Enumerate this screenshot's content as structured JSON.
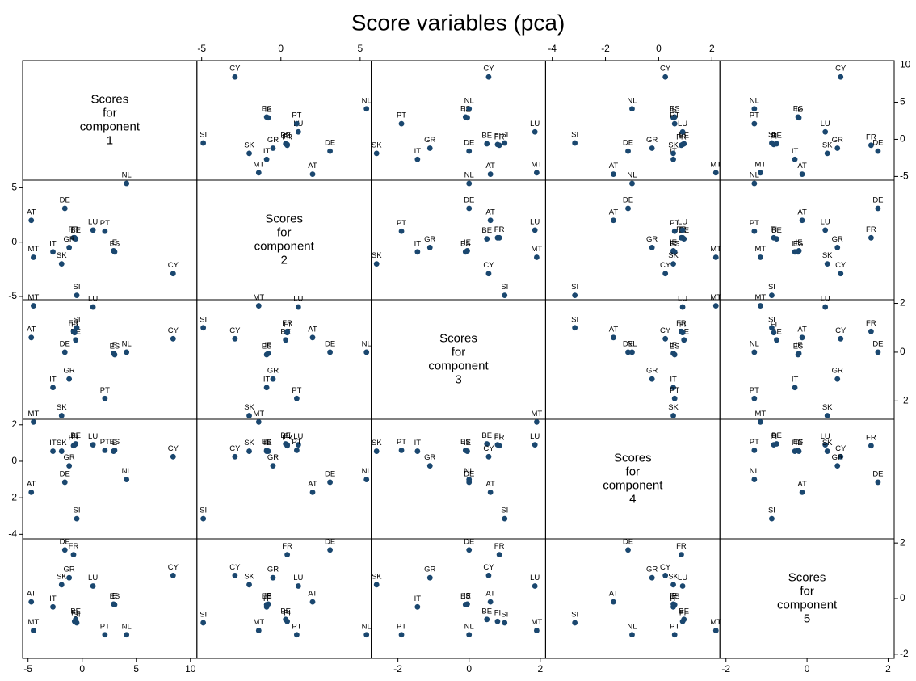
{
  "chart_data": {
    "type": "scatter_matrix",
    "title": "Score variables (pca)",
    "diagonal_text": [
      "Scores",
      "for",
      "component"
    ],
    "marker_color": "#1a476f",
    "point_labels": [
      "AT",
      "BE",
      "CY",
      "DE",
      "ES",
      "FI",
      "FR",
      "GR",
      "IE",
      "IT",
      "LU",
      "MT",
      "NL",
      "PT",
      "SI",
      "SK"
    ],
    "variables": [
      {
        "name": "1",
        "values": [
          -4.7,
          -0.6,
          8.4,
          -1.6,
          3.0,
          -0.7,
          -0.8,
          -1.2,
          2.9,
          -2.7,
          1.0,
          -4.5,
          4.1,
          2.1,
          -0.5,
          -1.9
        ],
        "lim": [
          -5.5,
          10.6
        ],
        "ticks": [
          -5,
          0,
          5,
          10
        ]
      },
      {
        "name": "2",
        "values": [
          2.0,
          0.3,
          -2.9,
          3.1,
          -0.9,
          0.4,
          0.4,
          -0.5,
          -0.8,
          -0.9,
          1.1,
          -1.4,
          5.4,
          1.0,
          -4.9,
          -2.0
        ],
        "lim": [
          -5.3,
          5.7
        ],
        "ticks": [
          -5,
          0,
          5
        ]
      },
      {
        "name": "3",
        "values": [
          0.6,
          0.5,
          0.55,
          0.0,
          -0.1,
          0.8,
          0.85,
          -1.1,
          -0.05,
          -1.45,
          1.85,
          1.9,
          0.0,
          -1.9,
          1.0,
          -2.6
        ],
        "lim": [
          -2.75,
          2.15
        ],
        "ticks": [
          -2,
          0,
          2
        ]
      },
      {
        "name": "4",
        "values": [
          -1.7,
          0.95,
          0.25,
          -1.15,
          0.6,
          0.9,
          0.85,
          -0.25,
          0.55,
          0.55,
          0.9,
          2.15,
          -1.0,
          0.6,
          -3.15,
          0.55
        ],
        "lim": [
          -4.25,
          2.3
        ],
        "ticks": [
          -4,
          -2,
          0,
          2
        ]
      },
      {
        "name": "5",
        "values": [
          -0.12,
          -0.75,
          0.83,
          1.75,
          -0.22,
          -0.82,
          1.58,
          0.75,
          -0.2,
          -0.3,
          0.45,
          -1.15,
          -1.3,
          -1.3,
          -0.87,
          0.5
        ],
        "lim": [
          -2.15,
          2.15
        ],
        "ticks": [
          -2,
          0,
          2
        ]
      }
    ]
  }
}
